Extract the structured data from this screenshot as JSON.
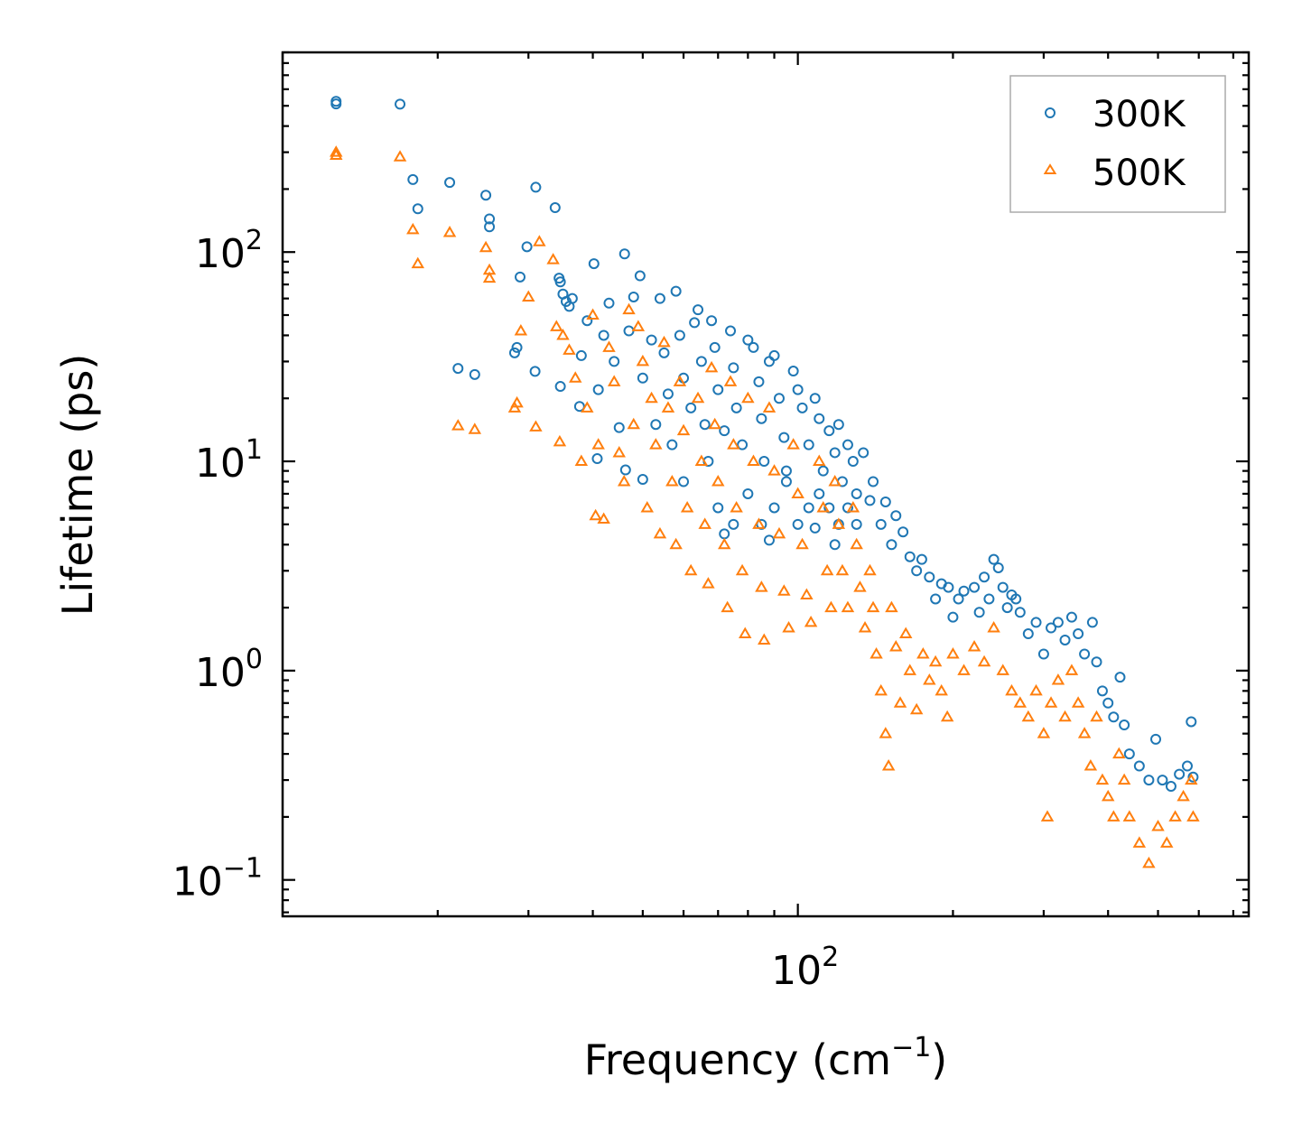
{
  "chart_data": {
    "type": "scatter",
    "title": "",
    "xlabel": "Frequency (cm",
    "xlabel_sup": "−1",
    "xlabel_end": ")",
    "ylabel": "Lifetime (ps)",
    "xscale": "log",
    "yscale": "log",
    "xlim": [
      10,
      750
    ],
    "ylim": [
      0.067,
      900
    ],
    "x_ticks": [
      {
        "value": 100,
        "base": "10",
        "exp": "2"
      }
    ],
    "y_ticks": [
      {
        "value": 100,
        "base": "10",
        "exp": "2"
      },
      {
        "value": 10,
        "base": "10",
        "exp": "1"
      },
      {
        "value": 1,
        "base": "10",
        "exp": "0"
      },
      {
        "value": 0.1,
        "base": "10",
        "exp": "−1"
      }
    ],
    "grid": false,
    "legend": {
      "placement": "top-right"
    },
    "series": [
      {
        "name": "300K",
        "marker": "circle",
        "color": "#1f77b4",
        "points": [
          [
            12.7,
            525
          ],
          [
            12.7,
            510
          ],
          [
            16.9,
            509
          ],
          [
            17.9,
            222
          ],
          [
            18.3,
            161
          ],
          [
            21.1,
            215
          ],
          [
            21.9,
            27.8
          ],
          [
            23.6,
            26
          ],
          [
            24.8,
            187
          ],
          [
            25.2,
            144
          ],
          [
            25.2,
            132
          ],
          [
            28.2,
            33
          ],
          [
            28.5,
            35
          ],
          [
            28.9,
            76
          ],
          [
            29.8,
            106
          ],
          [
            30.9,
            26.9
          ],
          [
            31,
            204
          ],
          [
            33.8,
            163
          ],
          [
            34.4,
            75
          ],
          [
            34.6,
            72
          ],
          [
            34.6,
            22.8
          ],
          [
            35,
            63
          ],
          [
            35.5,
            58
          ],
          [
            36,
            55
          ],
          [
            36.5,
            60
          ],
          [
            37.7,
            18.3
          ],
          [
            38,
            32
          ],
          [
            39,
            47
          ],
          [
            40.2,
            88
          ],
          [
            40.8,
            10.3
          ],
          [
            41,
            22
          ],
          [
            42,
            40
          ],
          [
            43,
            57
          ],
          [
            44,
            30
          ],
          [
            45,
            14.5
          ],
          [
            46.1,
            98
          ],
          [
            46.3,
            9.1
          ],
          [
            47,
            42
          ],
          [
            48,
            61
          ],
          [
            49.4,
            77
          ],
          [
            50,
            25
          ],
          [
            50,
            8.2
          ],
          [
            52,
            38
          ],
          [
            53,
            15
          ],
          [
            54,
            60
          ],
          [
            55,
            33
          ],
          [
            56,
            21
          ],
          [
            57,
            12
          ],
          [
            58,
            65
          ],
          [
            59,
            40
          ],
          [
            60,
            25
          ],
          [
            60,
            8
          ],
          [
            62,
            18
          ],
          [
            63,
            46
          ],
          [
            64,
            53
          ],
          [
            65,
            30
          ],
          [
            66,
            15
          ],
          [
            67,
            10
          ],
          [
            68,
            47
          ],
          [
            69,
            35
          ],
          [
            70,
            22
          ],
          [
            72,
            14
          ],
          [
            74,
            42
          ],
          [
            75,
            28
          ],
          [
            76,
            18
          ],
          [
            78,
            12
          ],
          [
            80,
            38
          ],
          [
            82,
            35
          ],
          [
            84,
            24
          ],
          [
            85,
            16
          ],
          [
            86,
            10
          ],
          [
            88,
            30
          ],
          [
            90,
            32
          ],
          [
            92,
            20
          ],
          [
            94,
            13
          ],
          [
            95,
            9
          ],
          [
            98,
            27
          ],
          [
            100,
            22
          ],
          [
            102,
            18
          ],
          [
            105,
            12
          ],
          [
            108,
            20
          ],
          [
            110,
            16
          ],
          [
            112,
            9
          ],
          [
            115,
            14
          ],
          [
            118,
            11
          ],
          [
            120,
            15
          ],
          [
            122,
            8
          ],
          [
            125,
            12
          ],
          [
            128,
            10
          ],
          [
            130,
            7
          ],
          [
            134,
            11
          ],
          [
            138,
            6.5
          ],
          [
            140,
            8
          ],
          [
            145,
            5
          ],
          [
            148,
            6.4
          ],
          [
            152,
            4
          ],
          [
            155,
            5.5
          ],
          [
            160,
            4.6
          ],
          [
            165,
            3.5
          ],
          [
            170,
            3
          ],
          [
            174,
            3.4
          ],
          [
            180,
            2.8
          ],
          [
            185,
            2.2
          ],
          [
            190,
            2.6
          ],
          [
            196,
            2.5
          ],
          [
            200,
            1.8
          ],
          [
            205,
            2.2
          ],
          [
            210,
            2.4
          ],
          [
            220,
            2.5
          ],
          [
            225,
            1.9
          ],
          [
            230,
            2.8
          ],
          [
            235,
            2.2
          ],
          [
            240,
            3.4
          ],
          [
            245,
            3.1
          ],
          [
            250,
            2.5
          ],
          [
            255,
            2.0
          ],
          [
            260,
            2.3
          ],
          [
            265,
            2.2
          ],
          [
            270,
            1.9
          ],
          [
            280,
            1.5
          ],
          [
            290,
            1.7
          ],
          [
            300,
            1.2
          ],
          [
            310,
            1.6
          ],
          [
            320,
            1.7
          ],
          [
            330,
            1.4
          ],
          [
            340,
            1.8
          ],
          [
            350,
            1.5
          ],
          [
            360,
            1.2
          ],
          [
            373,
            1.7
          ],
          [
            380,
            1.1
          ],
          [
            390,
            0.8
          ],
          [
            400,
            0.7
          ],
          [
            410,
            0.6
          ],
          [
            422,
            0.93
          ],
          [
            430,
            0.55
          ],
          [
            440,
            0.4
          ],
          [
            460,
            0.35
          ],
          [
            480,
            0.3
          ],
          [
            495,
            0.47
          ],
          [
            510,
            0.3
          ],
          [
            530,
            0.28
          ],
          [
            550,
            0.32
          ],
          [
            570,
            0.35
          ],
          [
            580,
            0.57
          ],
          [
            585,
            0.31
          ],
          [
            70,
            6
          ],
          [
            75,
            5
          ],
          [
            80,
            7
          ],
          [
            85,
            5
          ],
          [
            90,
            6
          ],
          [
            95,
            8
          ],
          [
            100,
            5
          ],
          [
            105,
            6
          ],
          [
            110,
            7
          ],
          [
            115,
            6
          ],
          [
            120,
            5
          ],
          [
            125,
            6
          ],
          [
            130,
            5
          ],
          [
            72,
            4.5
          ],
          [
            88,
            4.2
          ],
          [
            108,
            4.8
          ],
          [
            118,
            4
          ]
        ]
      },
      {
        "name": "500K",
        "marker": "triangle",
        "color": "#ff7f0e",
        "points": [
          [
            12.7,
            300
          ],
          [
            12.7,
            290
          ],
          [
            16.9,
            285
          ],
          [
            17.9,
            128
          ],
          [
            18.3,
            88
          ],
          [
            21.1,
            124
          ],
          [
            21.9,
            14.8
          ],
          [
            23.6,
            14.2
          ],
          [
            24.8,
            105
          ],
          [
            25.2,
            82
          ],
          [
            25.2,
            75
          ],
          [
            28.2,
            18
          ],
          [
            28.5,
            19
          ],
          [
            29,
            42
          ],
          [
            30,
            61
          ],
          [
            31,
            14.6
          ],
          [
            31.5,
            112
          ],
          [
            33.5,
            92
          ],
          [
            34,
            44
          ],
          [
            34.5,
            12.4
          ],
          [
            35,
            40
          ],
          [
            36,
            34
          ],
          [
            37,
            25
          ],
          [
            38,
            10
          ],
          [
            39,
            18
          ],
          [
            40,
            50
          ],
          [
            40.5,
            5.5
          ],
          [
            41,
            12
          ],
          [
            42,
            5.3
          ],
          [
            43,
            35
          ],
          [
            44,
            24
          ],
          [
            45,
            11
          ],
          [
            46,
            8
          ],
          [
            47,
            53
          ],
          [
            48,
            15
          ],
          [
            49,
            44
          ],
          [
            50,
            30
          ],
          [
            51,
            6
          ],
          [
            52,
            20
          ],
          [
            53,
            12
          ],
          [
            54,
            4.5
          ],
          [
            55,
            37
          ],
          [
            56,
            18
          ],
          [
            57,
            8
          ],
          [
            58,
            4
          ],
          [
            59,
            24
          ],
          [
            60,
            14
          ],
          [
            61,
            6
          ],
          [
            62,
            3
          ],
          [
            64,
            20
          ],
          [
            65,
            10
          ],
          [
            66,
            5
          ],
          [
            67,
            2.6
          ],
          [
            68,
            28
          ],
          [
            69,
            15
          ],
          [
            70,
            8
          ],
          [
            72,
            4
          ],
          [
            73,
            2
          ],
          [
            74,
            24
          ],
          [
            75,
            12
          ],
          [
            76,
            6
          ],
          [
            78,
            3
          ],
          [
            79,
            1.5
          ],
          [
            80,
            20
          ],
          [
            82,
            10
          ],
          [
            84,
            5
          ],
          [
            85,
            2.5
          ],
          [
            86,
            1.4
          ],
          [
            88,
            18
          ],
          [
            90,
            9
          ],
          [
            92,
            4.5
          ],
          [
            94,
            2.4
          ],
          [
            96,
            1.6
          ],
          [
            98,
            12
          ],
          [
            100,
            7
          ],
          [
            102,
            4
          ],
          [
            104,
            2.3
          ],
          [
            106,
            1.7
          ],
          [
            110,
            10
          ],
          [
            112,
            6
          ],
          [
            114,
            3
          ],
          [
            116,
            2
          ],
          [
            118,
            8
          ],
          [
            120,
            5
          ],
          [
            122,
            3
          ],
          [
            125,
            2
          ],
          [
            128,
            6
          ],
          [
            130,
            4
          ],
          [
            132,
            2.5
          ],
          [
            135,
            1.6
          ],
          [
            138,
            3
          ],
          [
            140,
            2
          ],
          [
            142,
            1.2
          ],
          [
            145,
            0.8
          ],
          [
            148,
            0.5
          ],
          [
            150,
            0.35
          ],
          [
            152,
            2
          ],
          [
            155,
            1.3
          ],
          [
            158,
            0.7
          ],
          [
            162,
            1.5
          ],
          [
            165,
            1
          ],
          [
            170,
            0.65
          ],
          [
            175,
            1.2
          ],
          [
            180,
            0.9
          ],
          [
            185,
            1.1
          ],
          [
            190,
            0.8
          ],
          [
            195,
            0.6
          ],
          [
            200,
            1.2
          ],
          [
            210,
            1.0
          ],
          [
            220,
            1.3
          ],
          [
            230,
            1.1
          ],
          [
            240,
            1.6
          ],
          [
            250,
            1.0
          ],
          [
            260,
            0.8
          ],
          [
            270,
            0.7
          ],
          [
            280,
            0.6
          ],
          [
            290,
            0.8
          ],
          [
            300,
            0.5
          ],
          [
            305,
            0.2
          ],
          [
            310,
            0.7
          ],
          [
            320,
            0.9
          ],
          [
            330,
            0.6
          ],
          [
            340,
            1.0
          ],
          [
            350,
            0.7
          ],
          [
            360,
            0.5
          ],
          [
            370,
            0.35
          ],
          [
            380,
            0.6
          ],
          [
            390,
            0.3
          ],
          [
            400,
            0.25
          ],
          [
            410,
            0.2
          ],
          [
            420,
            0.4
          ],
          [
            430,
            0.3
          ],
          [
            440,
            0.2
          ],
          [
            460,
            0.15
          ],
          [
            480,
            0.12
          ],
          [
            500,
            0.18
          ],
          [
            520,
            0.15
          ],
          [
            540,
            0.2
          ],
          [
            560,
            0.25
          ],
          [
            580,
            0.3
          ],
          [
            585,
            0.2
          ]
        ]
      }
    ]
  }
}
